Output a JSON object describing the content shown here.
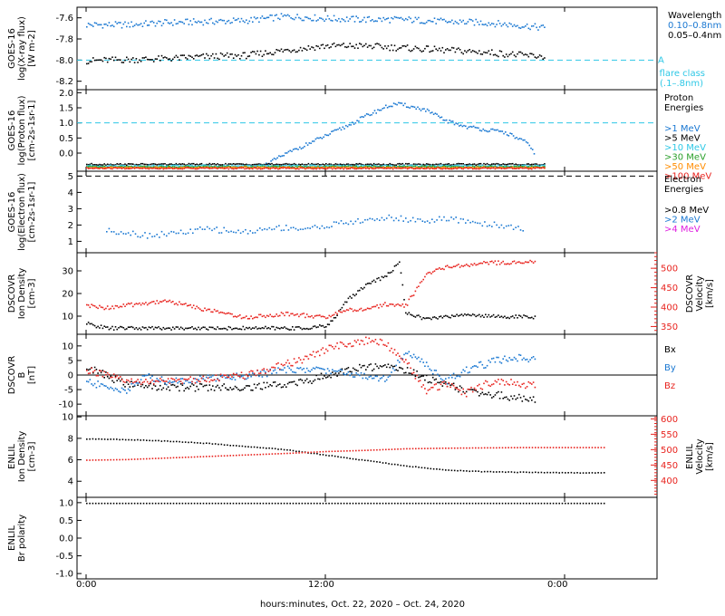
{
  "figure": {
    "xlabel": "hours:minutes, Oct. 22, 2020 – Oct. 24, 2020",
    "x_ticks": [
      "0:00",
      "12:00",
      "0:00"
    ]
  },
  "colors": {
    "black": "#000000",
    "blue": "#1a78d2",
    "cyan": "#2ec8e6",
    "green": "#2aa02a",
    "yellow": "#c8c800",
    "orange": "#ff8c00",
    "red": "#e8231e",
    "magenta": "#e020e0",
    "dashcyan": "#2ec8e6"
  },
  "chart_data": [
    {
      "type": "scatter",
      "panel": "xray",
      "ylabel": [
        "GOES-16",
        "log(X-ray flux)",
        "[W m-2]"
      ],
      "yticks": [
        "-7.6",
        "-7.8",
        "-8.0",
        "-8.2"
      ],
      "ylim": [
        -8.28,
        -7.5
      ],
      "legend_title": "Wavelength",
      "series": [
        {
          "name": "0.10–0.8nm",
          "color": "blue",
          "x": [
            0,
            2,
            4,
            6,
            8,
            10,
            12,
            14,
            16,
            18,
            20,
            22,
            23
          ],
          "y": [
            -7.66,
            -7.66,
            -7.64,
            -7.63,
            -7.62,
            -7.58,
            -7.6,
            -7.61,
            -7.61,
            -7.63,
            -7.64,
            -7.67,
            -7.69
          ]
        },
        {
          "name": "0.05–0.4nm",
          "color": "black",
          "x": [
            0,
            2,
            4,
            6,
            8,
            10,
            12,
            14,
            16,
            18,
            20,
            22,
            23
          ],
          "y": [
            -8.0,
            -7.99,
            -7.98,
            -7.96,
            -7.95,
            -7.9,
            -7.86,
            -7.86,
            -7.88,
            -7.9,
            -7.92,
            -7.95,
            -7.96
          ]
        }
      ],
      "threshold": {
        "y": -8.0,
        "label": "A",
        "note": [
          "flare class",
          "(.1–.8nm)"
        ]
      }
    },
    {
      "type": "scatter",
      "panel": "proton",
      "ylabel": [
        "GOES-16",
        "log(Proton flux)",
        "[cm-2s-1sr-1]"
      ],
      "yticks": [
        "2.0",
        "1.5",
        "1.0",
        "0.5",
        "0.0"
      ],
      "ylim": [
        -0.6,
        2.1
      ],
      "threshold_y": 1.0,
      "legend_title": [
        "Proton",
        "Energies"
      ],
      "series": [
        {
          "name": ">1 MeV",
          "color": "blue",
          "x": [
            9,
            10,
            11,
            12,
            13,
            14,
            15,
            15.5,
            16,
            17,
            18,
            19,
            20,
            21,
            22,
            22.5
          ],
          "y": [
            -0.35,
            0.0,
            0.3,
            0.6,
            0.9,
            1.25,
            1.55,
            1.65,
            1.6,
            1.45,
            1.1,
            0.9,
            0.8,
            0.7,
            0.4,
            0.0
          ]
        },
        {
          "name": ">5 MeV",
          "color": "black",
          "x": [
            0,
            23
          ],
          "y": [
            -0.35,
            -0.35
          ]
        },
        {
          "name": ">10 MeV",
          "color": "cyan",
          "x": [
            0,
            23
          ],
          "y": [
            -0.4,
            -0.4
          ]
        },
        {
          "name": ">30 MeV",
          "color": "green",
          "x": [
            0,
            23
          ],
          "y": [
            -0.43,
            -0.43
          ]
        },
        {
          "name": ">50 MeV",
          "color": "orange",
          "x": [
            0,
            23
          ],
          "y": [
            -0.46,
            -0.46
          ]
        },
        {
          "name": ">100 MeV",
          "color": "red",
          "x": [
            0,
            23
          ],
          "y": [
            -0.48,
            -0.48
          ]
        }
      ]
    },
    {
      "type": "scatter",
      "panel": "electron",
      "ylabel": [
        "GOES-16",
        "log(Electron flux)",
        "[cm-2s-1sr-1]"
      ],
      "yticks": [
        "5",
        "4",
        "3",
        "2",
        "1"
      ],
      "ylim": [
        0.3,
        5.3
      ],
      "threshold_y": 5.0,
      "legend_title": [
        "Electron",
        "Energies"
      ],
      "series": [
        {
          "name": ">0.8 MeV",
          "color": "black",
          "x": [],
          "y": []
        },
        {
          "name": ">2 MeV",
          "color": "blue",
          "x": [
            1,
            2,
            3,
            4,
            5,
            6,
            7,
            8,
            9,
            10,
            11,
            12,
            13,
            14,
            15,
            16,
            17,
            18,
            19,
            20,
            21,
            22
          ],
          "y": [
            1.7,
            1.6,
            1.4,
            1.5,
            1.6,
            1.8,
            1.7,
            1.6,
            1.8,
            1.9,
            1.8,
            2.0,
            2.2,
            2.3,
            2.5,
            2.4,
            2.3,
            2.4,
            2.3,
            2.1,
            2.0,
            1.8
          ]
        },
        {
          "name": ">4 MeV",
          "color": "magenta",
          "x": [],
          "y": []
        }
      ]
    },
    {
      "type": "scatter",
      "panel": "dscovr_density",
      "ylabel": [
        "DSCOVR",
        "Ion Density",
        "[cm-3]"
      ],
      "yticks": [
        "30",
        "20",
        "10"
      ],
      "ylim": [
        2,
        38
      ],
      "ylabel_right": [
        "DSCOVR",
        "Velocity",
        "[km/s]"
      ],
      "yticks_right": [
        "500",
        "450",
        "400",
        "350"
      ],
      "ylim_right": [
        330,
        540
      ],
      "series": [
        {
          "name": "Ion Density",
          "color": "black",
          "x": [
            0,
            1,
            3,
            6,
            9,
            11,
            12,
            12.5,
            13,
            14,
            15,
            15.7,
            16,
            17,
            19,
            21,
            22.5
          ],
          "y": [
            7,
            5,
            5,
            5,
            5,
            5,
            6,
            10,
            17,
            24,
            28,
            34,
            12,
            9,
            11,
            10,
            10
          ]
        },
        {
          "name": "Velocity",
          "color": "red",
          "x": [
            0,
            1,
            3,
            4,
            6,
            8,
            10,
            12,
            13,
            14,
            15,
            16,
            17,
            18,
            20,
            22,
            22.5
          ],
          "y": [
            405,
            400,
            412,
            418,
            395,
            375,
            385,
            375,
            395,
            395,
            410,
            405,
            485,
            505,
            515,
            518,
            520
          ]
        }
      ]
    },
    {
      "type": "scatter",
      "panel": "dscovr_b",
      "ylabel": [
        "DSCOVR",
        "B",
        "[nT]"
      ],
      "yticks": [
        "10",
        "5",
        "0",
        "-5",
        "-10"
      ],
      "ylim": [
        -14,
        14
      ],
      "legend_labels": [
        "Bx",
        "By",
        "Bz"
      ],
      "series": [
        {
          "name": "Bx",
          "color": "black",
          "x": [
            0,
            1,
            2,
            4,
            6,
            8,
            10,
            11,
            12,
            13,
            14,
            15,
            16,
            17,
            18,
            19,
            20,
            21,
            22,
            22.5
          ],
          "y": [
            3,
            0,
            -3,
            -4,
            -4,
            -4,
            -3,
            -2,
            0,
            2,
            3,
            3,
            2,
            -1,
            -3,
            -5,
            -6,
            -7,
            -8,
            -8
          ]
        },
        {
          "name": "By",
          "color": "blue",
          "x": [
            0,
            1,
            2,
            3,
            4,
            6,
            8,
            10,
            12,
            13,
            14,
            15,
            16,
            17,
            18,
            19,
            20,
            21,
            22,
            22.5
          ],
          "y": [
            -2,
            -4,
            -5,
            0,
            -2,
            -1,
            0,
            2,
            2,
            1,
            0,
            -1,
            8,
            4,
            -2,
            2,
            4,
            6,
            6,
            6
          ]
        },
        {
          "name": "Bz",
          "color": "red",
          "x": [
            0,
            1,
            2,
            4,
            6,
            8,
            9,
            10,
            11,
            12,
            13,
            14,
            15,
            16,
            17,
            18,
            19,
            20,
            21,
            22,
            22.5
          ],
          "y": [
            2,
            0,
            -2,
            -2,
            -1,
            0,
            2,
            4,
            6,
            9,
            11,
            12,
            11,
            5,
            -5,
            -3,
            -6,
            -3,
            -2,
            -3,
            -3
          ]
        }
      ]
    },
    {
      "type": "scatter",
      "panel": "enlil_density",
      "ylabel": [
        "ENLIL",
        "Ion Density",
        "[cm-3]"
      ],
      "yticks": [
        "10",
        "8",
        "6",
        "4"
      ],
      "ylim": [
        2.5,
        10.1
      ],
      "ylabel_right": [
        "ENLIL",
        "Velocity",
        "[km/s]"
      ],
      "yticks_right": [
        "600",
        "550",
        "500",
        "450",
        "400"
      ],
      "ylim_right": [
        345,
        610
      ],
      "series": [
        {
          "name": "Ion Density",
          "color": "black",
          "x": [
            0,
            2,
            4,
            6,
            8,
            10,
            12,
            14,
            16,
            18,
            20,
            22,
            24,
            26
          ],
          "y": [
            8.0,
            7.95,
            7.8,
            7.6,
            7.3,
            7.0,
            6.5,
            6.0,
            5.5,
            5.1,
            4.95,
            4.9,
            4.85,
            4.85
          ]
        },
        {
          "name": "Velocity",
          "color": "red",
          "x": [
            0,
            2,
            4,
            6,
            8,
            10,
            12,
            14,
            16,
            18,
            20,
            22,
            24,
            26
          ],
          "y": [
            468,
            470,
            475,
            480,
            485,
            490,
            496,
            500,
            505,
            507,
            508,
            509,
            509,
            509
          ]
        }
      ]
    },
    {
      "type": "scatter",
      "panel": "enlil_polarity",
      "ylabel": [
        "ENLIL",
        "Br polarity"
      ],
      "yticks": [
        "1.0",
        "0.5",
        "0.0",
        "-0.5",
        "-1.0"
      ],
      "ylim": [
        -1.15,
        1.15
      ],
      "series": [
        {
          "name": "Br polarity",
          "color": "black",
          "x": [
            0,
            26
          ],
          "y": [
            1.0,
            1.0
          ]
        }
      ]
    }
  ]
}
